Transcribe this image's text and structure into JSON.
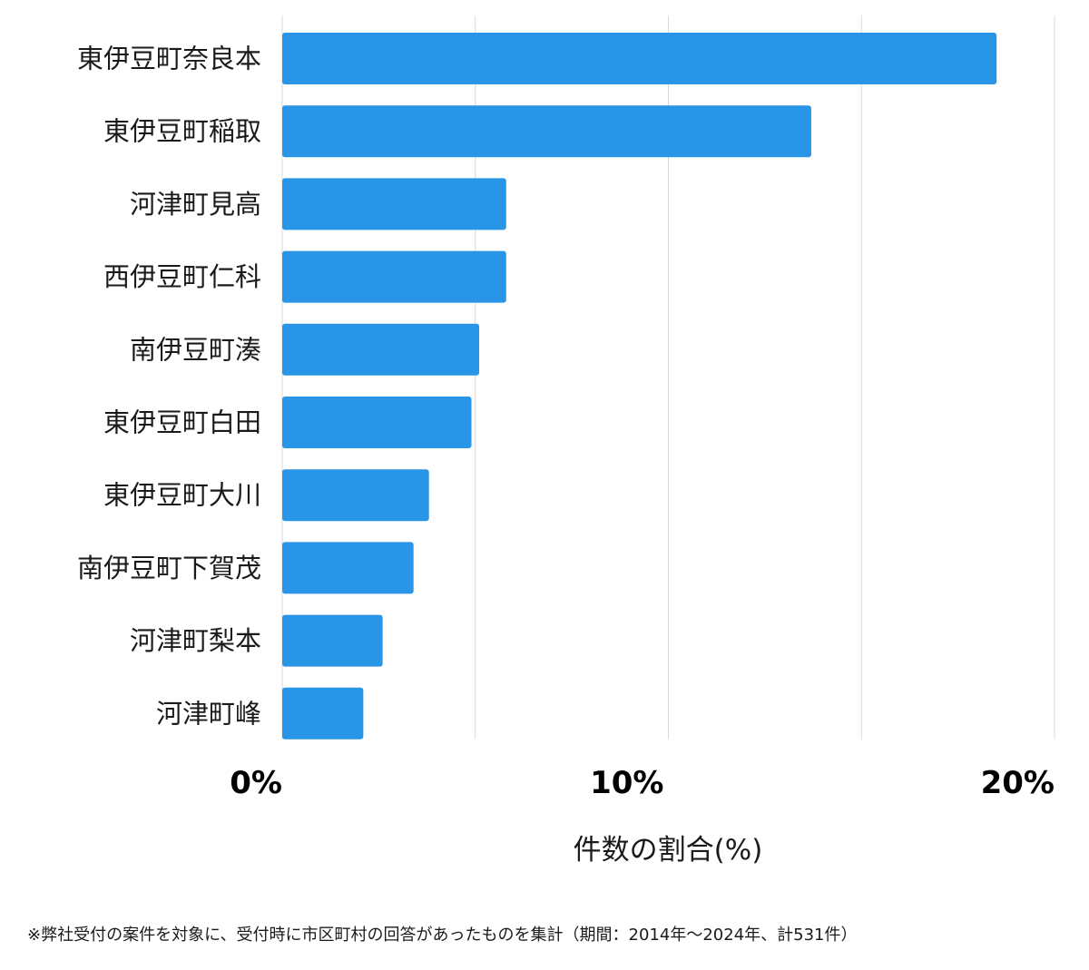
{
  "chart_data": {
    "type": "bar",
    "orientation": "horizontal",
    "categories": [
      "東伊豆町奈良本",
      "東伊豆町稲取",
      "河津町見高",
      "西伊豆町仁科",
      "南伊豆町湊",
      "東伊豆町白田",
      "東伊豆町大川",
      "南伊豆町下賀茂",
      "河津町梨本",
      "河津町峰"
    ],
    "values": [
      18.5,
      13.7,
      5.8,
      5.8,
      5.1,
      4.9,
      3.8,
      3.4,
      2.6,
      2.1
    ],
    "xlim": [
      0,
      20
    ],
    "xticks": [
      0,
      10,
      20
    ],
    "xtick_labels": [
      "0%",
      "10%",
      "20%"
    ],
    "grid_values": [
      0,
      5,
      10,
      15,
      20
    ],
    "xlabel": "件数の割合(%)",
    "grid": true,
    "bar_color": "#2895e6",
    "grid_color": "#d9d9d9"
  },
  "footnote": "※弊社受付の案件を対象に、受付時に市区町村の回答があったものを集計（期間：2014年～2024年、計531件）"
}
